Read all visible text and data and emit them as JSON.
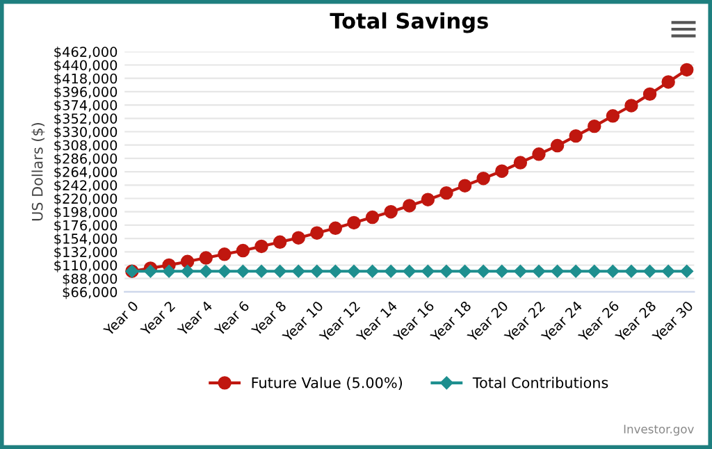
{
  "chart_data": {
    "type": "line",
    "title": "Total Savings",
    "ylabel": "US Dollars ($)",
    "categories": [
      "Year 0",
      null,
      "Year 2",
      null,
      "Year 4",
      null,
      "Year 6",
      null,
      "Year 8",
      null,
      "Year 10",
      null,
      "Year 12",
      null,
      "Year 14",
      null,
      "Year 16",
      null,
      "Year 18",
      null,
      "Year 20",
      null,
      "Year 22",
      null,
      "Year 24",
      null,
      "Year 26",
      null,
      "Year 28",
      null,
      "Year 30"
    ],
    "series": [
      {
        "name": "Future Value (5.00%)",
        "color": "#c0170f",
        "marker": "circle",
        "values": [
          100000,
          105000,
          110000,
          116000,
          122000,
          128000,
          134000,
          141000,
          148000,
          155000,
          163000,
          171000,
          180000,
          189000,
          198000,
          208000,
          218000,
          229000,
          241000,
          253000,
          265000,
          279000,
          293000,
          307000,
          323000,
          339000,
          356000,
          373000,
          392000,
          412000,
          432000
        ]
      },
      {
        "name": "Total Contributions",
        "color": "#1e8f8f",
        "marker": "diamond",
        "values": [
          100000,
          100000,
          100000,
          100000,
          100000,
          100000,
          100000,
          100000,
          100000,
          100000,
          100000,
          100000,
          100000,
          100000,
          100000,
          100000,
          100000,
          100000,
          100000,
          100000,
          100000,
          100000,
          100000,
          100000,
          100000,
          100000,
          100000,
          100000,
          100000,
          100000,
          100000
        ]
      }
    ],
    "ylim": [
      66000,
      462000
    ],
    "yticks": [
      {
        "value": 66000,
        "label": "$66,000"
      },
      {
        "value": 88000,
        "label": "$88,000"
      },
      {
        "value": 110000,
        "label": "$110,000"
      },
      {
        "value": 132000,
        "label": "$132,000"
      },
      {
        "value": 154000,
        "label": "$154,000"
      },
      {
        "value": 176000,
        "label": "$176,000"
      },
      {
        "value": 198000,
        "label": "$198,000"
      },
      {
        "value": 220000,
        "label": "$220,000"
      },
      {
        "value": 242000,
        "label": "$242,000"
      },
      {
        "value": 264000,
        "label": "$264,000"
      },
      {
        "value": 286000,
        "label": "$286,000"
      },
      {
        "value": 308000,
        "label": "$308,000"
      },
      {
        "value": 330000,
        "label": "$330,000"
      },
      {
        "value": 352000,
        "label": "$352,000"
      },
      {
        "value": 374000,
        "label": "$374,000"
      },
      {
        "value": 396000,
        "label": "$396,000"
      },
      {
        "value": 418000,
        "label": "$418,000"
      },
      {
        "value": 440000,
        "label": "$440,000"
      },
      {
        "value": 462000,
        "label": "$462,000"
      }
    ],
    "grid": "y",
    "legend": "bottom",
    "line_style": "solid",
    "annotations": [
      "Investor.gov"
    ]
  }
}
